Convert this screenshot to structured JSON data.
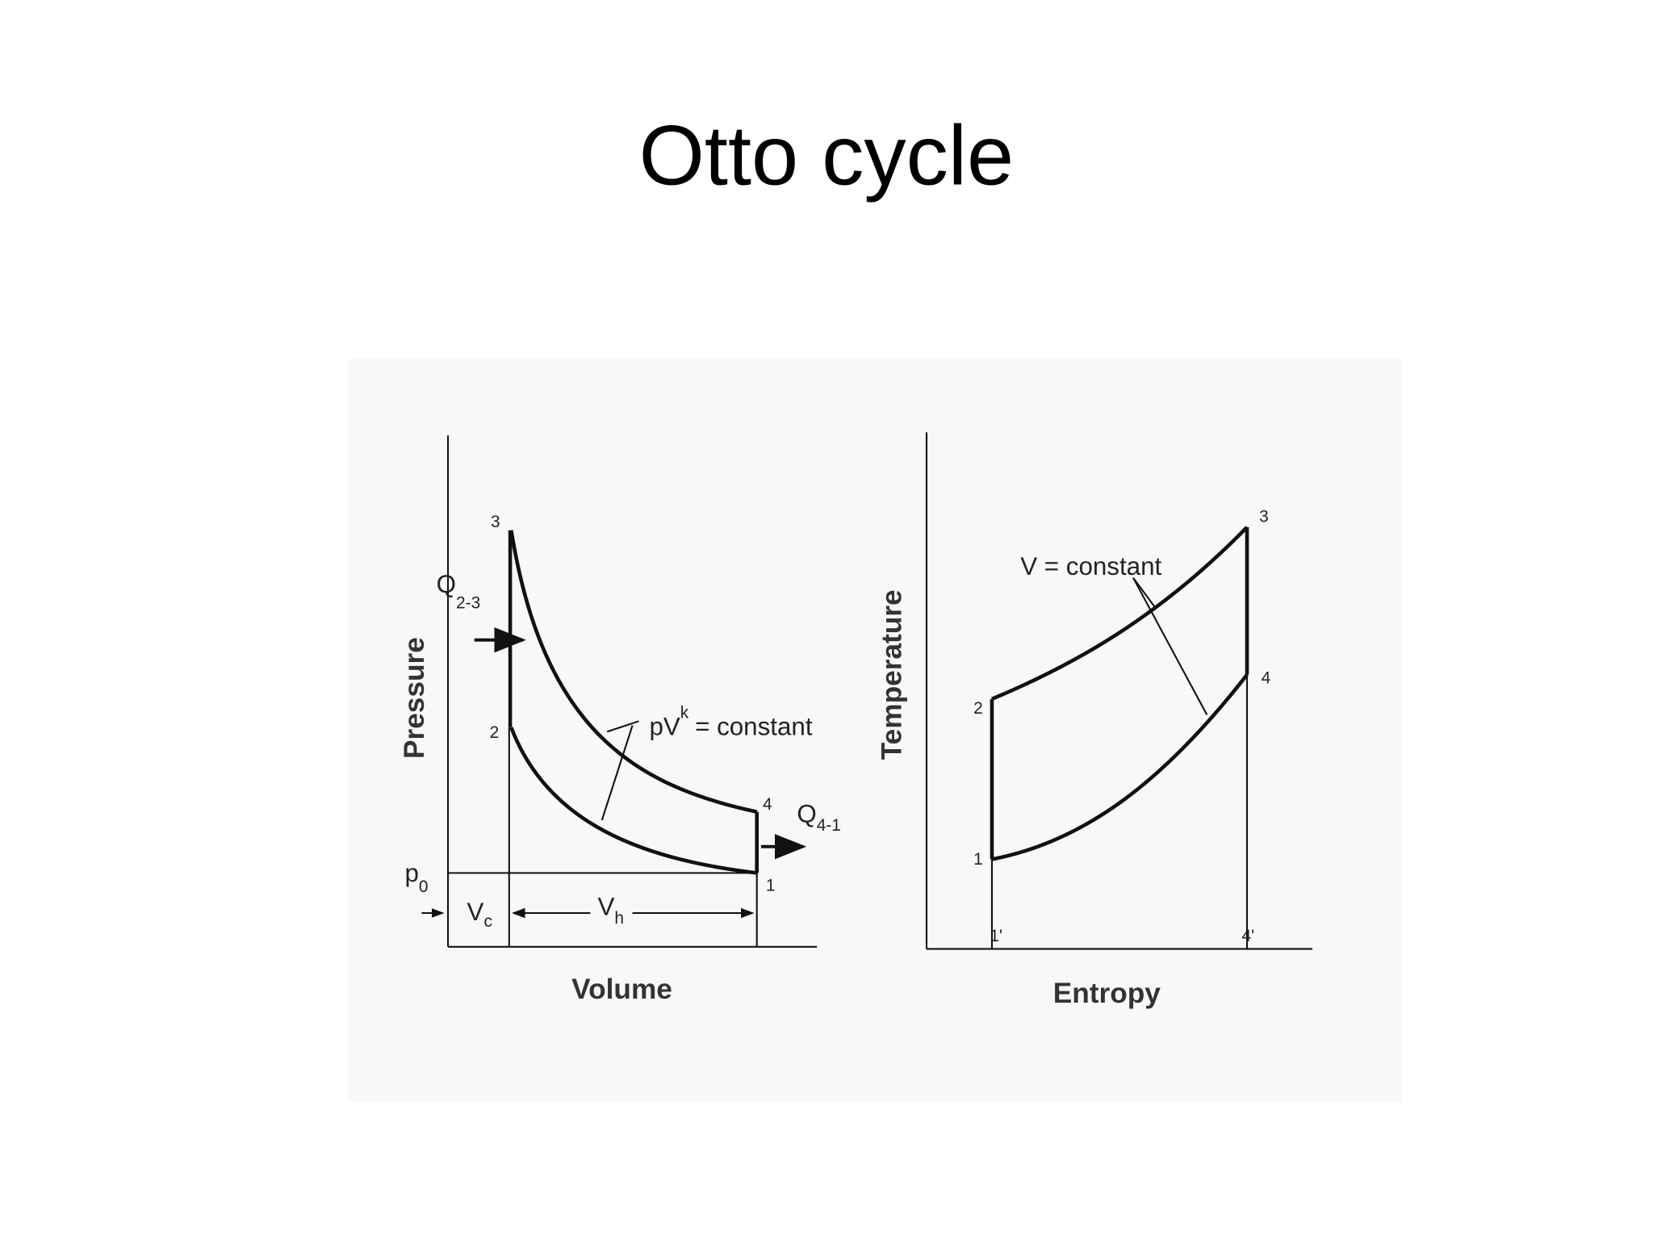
{
  "title": "Otto cycle",
  "pv_diagram": {
    "y_axis_label": "Pressure",
    "x_axis_label": "Volume",
    "points": {
      "p3": "3",
      "p2": "2",
      "p4": "4",
      "p1": "1"
    },
    "heat_in": {
      "symbol": "Q",
      "subscript": "2-3"
    },
    "heat_out": {
      "symbol": "Q",
      "subscript": "4-1"
    },
    "isentrope": {
      "base": "pV",
      "exponent": "k",
      "rest": "= constant"
    },
    "p0": {
      "symbol": "p",
      "subscript": "0"
    },
    "vc": {
      "symbol": "V",
      "subscript": "c"
    },
    "vh": {
      "symbol": "V",
      "subscript": "h"
    }
  },
  "ts_diagram": {
    "y_axis_label": "Temperature",
    "x_axis_label": "Entropy",
    "annotation": "V = constant",
    "points": {
      "p1": "1",
      "p2": "2",
      "p3": "3",
      "p4": "4",
      "p1_prime": "1'",
      "p4_prime": "4'"
    }
  }
}
